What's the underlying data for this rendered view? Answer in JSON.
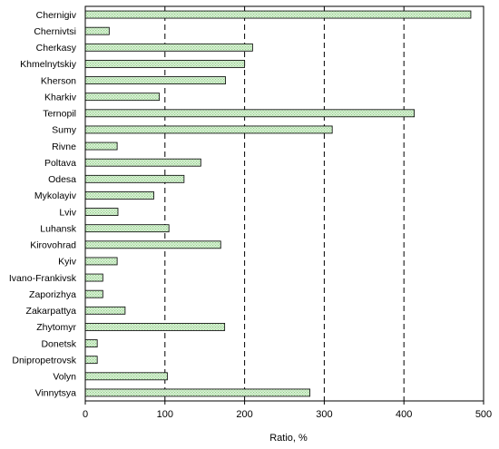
{
  "chart_data": {
    "type": "bar",
    "orientation": "horizontal",
    "title": "",
    "xlabel": "Ratio, %",
    "ylabel": "",
    "xlim": [
      0,
      500
    ],
    "xticks": [
      0,
      100,
      200,
      300,
      400,
      500
    ],
    "xtick_labels": [
      "0",
      "100",
      "200",
      "300",
      "400",
      "500"
    ],
    "grid": "dashed vertical lines at 100, 200, 300, 400",
    "legend": "none",
    "colors": {
      "bar_fill": "#dff3dc",
      "bar_dots": "#8fcf86",
      "bar_stroke": "#000000",
      "grid": "#000000"
    },
    "categories": [
      "Chernigiv",
      "Chernivtsi",
      "Cherkasy",
      "Khmelnytskiy",
      "Kherson",
      "Kharkiv",
      "Ternopil",
      "Sumy",
      "Rivne",
      "Poltava",
      "Odesa",
      "Mykolayiv",
      "Lviv",
      "Luhansk",
      "Kirovohrad",
      "Kyiv",
      "Ivano-Frankivsk",
      "Zaporizhya",
      "Zakarpattya",
      "Zhytomyr",
      "Donetsk",
      "Dnipropetrovsk",
      "Volyn",
      "Vinnytsya"
    ],
    "values": [
      484,
      30,
      210,
      200,
      176,
      93,
      413,
      310,
      40,
      145,
      124,
      86,
      41,
      105,
      170,
      40,
      22,
      22,
      50,
      175,
      15,
      15,
      103,
      282
    ]
  }
}
